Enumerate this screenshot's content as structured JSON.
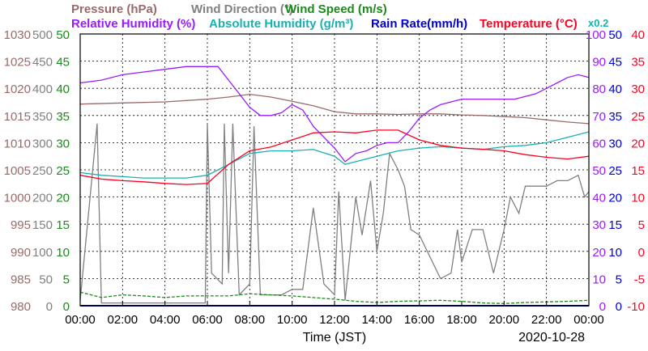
{
  "chart_data": {
    "type": "line",
    "title_parts": [
      {
        "text": "Pressure (hPa)",
        "color": "#9a6a6a"
      },
      {
        "text": "Wind Direction (°)",
        "color": "#808080"
      },
      {
        "text": "Wind Speed (m/s)",
        "color": "#1a8a1a"
      },
      {
        "text": "Relative Humidity (%)",
        "color": "#9a1aff"
      },
      {
        "text": "Absolute Humidity (g/m³)",
        "color": "#1ab0b0"
      },
      {
        "text": "Rain Rate(mm/h)",
        "color": "#0000d0"
      },
      {
        "text": "Temperature (°C)",
        "color": "#ff0020"
      }
    ],
    "scale_note": "x0.2",
    "xlabel": "Time (JST)",
    "date": "2020-10-28",
    "x_ticks": [
      "00:00",
      "02:00",
      "04:00",
      "06:00",
      "08:00",
      "10:00",
      "12:00",
      "14:00",
      "16:00",
      "18:00",
      "20:00",
      "22:00",
      "00:00"
    ],
    "xlim_hours": [
      0,
      24
    ],
    "grid": true,
    "axes": {
      "pressure": {
        "range": [
          980,
          1030
        ],
        "ticks": [
          "1030",
          "1025",
          "1020",
          "1015",
          "1010",
          "1005",
          "1000",
          "995",
          "990",
          "985",
          "980"
        ],
        "color": "#9a6a6a",
        "side": "left"
      },
      "wind_direction": {
        "range": [
          0,
          500
        ],
        "ticks": [
          "500",
          "450",
          "400",
          "350",
          "300",
          "250",
          "200",
          "150",
          "100",
          "50",
          "0"
        ],
        "color": "#808080",
        "side": "left"
      },
      "wind_speed": {
        "range": [
          0,
          50
        ],
        "ticks": [
          "50",
          "45",
          "40",
          "35",
          "30",
          "25",
          "20",
          "15",
          "10",
          "5",
          "0"
        ],
        "color": "#1a8a1a",
        "side": "left"
      },
      "humidity": {
        "range": [
          0,
          100
        ],
        "ticks": [
          "100",
          "90",
          "80",
          "70",
          "60",
          "50",
          "40",
          "30",
          "20",
          "10",
          "0"
        ],
        "color": "#9a1aff",
        "side": "right"
      },
      "rain_rate": {
        "range": [
          0,
          50
        ],
        "ticks": [
          "50",
          "45",
          "40",
          "35",
          "30",
          "25",
          "20",
          "15",
          "10",
          "5",
          "0"
        ],
        "color": "#0000d0",
        "side": "right"
      },
      "temperature": {
        "range": [
          -10,
          40
        ],
        "ticks": [
          "40",
          "35",
          "30",
          "25",
          "20",
          "15",
          "10",
          "5",
          "0",
          "-5",
          "-10"
        ],
        "color": "#ff0020",
        "side": "right"
      }
    },
    "series": [
      {
        "name": "Pressure (hPa)",
        "axis": "pressure",
        "color": "#9a6a6a",
        "x": [
          0,
          2,
          4,
          6,
          7,
          8,
          9,
          10,
          11,
          12,
          13,
          14,
          15,
          16,
          17,
          18,
          19,
          20,
          21,
          22,
          23,
          24
        ],
        "y": [
          1017.1,
          1017.3,
          1017.5,
          1018.0,
          1018.4,
          1018.9,
          1018.4,
          1017.6,
          1016.8,
          1015.7,
          1015.3,
          1015.3,
          1015.2,
          1015.3,
          1015.3,
          1015.1,
          1015.0,
          1014.8,
          1014.6,
          1014.2,
          1013.8,
          1013.5
        ]
      },
      {
        "name": "Wind Direction (°)",
        "axis": "wind_direction",
        "color": "#808080",
        "x": [
          0,
          0.8,
          1,
          2,
          3,
          4,
          5,
          5.9,
          6,
          6.2,
          6.7,
          6.8,
          7,
          7.2,
          7.5,
          8,
          8.2,
          8.5,
          8.8,
          9,
          9.5,
          10,
          10.5,
          11,
          11.5,
          12,
          12.2,
          12.5,
          13,
          13.3,
          13.7,
          14,
          14.3,
          14.6,
          15,
          15.3,
          15.6,
          16,
          16.5,
          17,
          17.5,
          17.8,
          18,
          18.5,
          19,
          19.5,
          20,
          20.3,
          20.7,
          21,
          21.5,
          22,
          22.5,
          23,
          23.5,
          23.8,
          24
        ],
        "y": [
          10,
          335,
          5,
          5,
          5,
          5,
          5,
          5,
          335,
          60,
          40,
          335,
          60,
          335,
          20,
          40,
          330,
          20,
          20,
          20,
          20,
          30,
          30,
          180,
          40,
          20,
          210,
          10,
          200,
          130,
          230,
          100,
          170,
          280,
          250,
          220,
          140,
          130,
          90,
          50,
          60,
          140,
          80,
          140,
          140,
          60,
          140,
          200,
          170,
          220,
          220,
          220,
          230,
          230,
          240,
          200,
          210
        ]
      },
      {
        "name": "Wind Speed (m/s)",
        "axis": "wind_speed",
        "color": "#1a8a1a",
        "x": [
          0,
          1,
          2,
          3,
          4,
          5,
          6,
          7,
          8,
          9,
          10,
          11,
          12,
          13,
          14,
          15,
          16,
          17,
          18,
          19,
          20,
          21,
          22,
          23,
          24
        ],
        "y": [
          2.5,
          1.5,
          2.0,
          1.8,
          1.5,
          1.8,
          1.8,
          1.8,
          2.2,
          2.0,
          1.8,
          1.5,
          1.2,
          0.8,
          0.6,
          0.8,
          0.9,
          1.0,
          0.8,
          0.5,
          0.4,
          0.6,
          0.7,
          0.8,
          1.0
        ]
      },
      {
        "name": "Relative Humidity (%)",
        "axis": "humidity",
        "color": "#9a1aff",
        "x": [
          0,
          1,
          2,
          3,
          4,
          5,
          5.5,
          6,
          6.5,
          7,
          7.5,
          8,
          8.5,
          9,
          9.5,
          10,
          10.5,
          11,
          11.5,
          12,
          12.5,
          13,
          13.5,
          14,
          14.5,
          15,
          15.5,
          16,
          16.5,
          17,
          17.5,
          18,
          18.5,
          19,
          19.5,
          20,
          20.5,
          21,
          21.5,
          22,
          22.5,
          23,
          23.5,
          24
        ],
        "y": [
          82,
          83,
          85,
          86,
          87,
          88,
          88,
          88,
          88,
          83,
          78,
          73,
          70,
          70,
          71,
          74,
          72,
          66,
          62,
          58,
          53,
          56,
          57,
          59,
          60,
          60,
          64,
          69,
          72,
          74,
          75,
          76,
          76,
          76,
          76,
          76,
          76,
          77,
          78,
          80,
          82,
          84,
          85,
          84
        ]
      },
      {
        "name": "Absolute Humidity (g/m³)",
        "axis": "humidity",
        "color": "#1ab0b0",
        "x": [
          0,
          1,
          2,
          3,
          4,
          5,
          6,
          7,
          8,
          9,
          10,
          11,
          12,
          12.5,
          13,
          14,
          15,
          16,
          17,
          18,
          19,
          20,
          21,
          22,
          23,
          24
        ],
        "y": [
          49,
          48,
          47.5,
          47,
          47,
          47,
          48,
          52,
          56,
          57,
          57,
          57.5,
          55,
          52,
          53,
          55,
          57,
          58,
          58.5,
          58,
          57.5,
          58.5,
          59,
          60,
          62,
          64
        ]
      },
      {
        "name": "Rain Rate(mm/h)",
        "axis": "rain_rate",
        "color": "#0000d0",
        "x": [
          0,
          24
        ],
        "y": [
          0,
          0
        ]
      },
      {
        "name": "Temperature (°C)",
        "axis": "temperature",
        "color": "#ff0020",
        "x": [
          0,
          1,
          2,
          3,
          4,
          5,
          6,
          7,
          8,
          9,
          10,
          11,
          12,
          13,
          14,
          15,
          16,
          17,
          18,
          19,
          20,
          21,
          22,
          23,
          24
        ],
        "y": [
          14.0,
          13.3,
          13.0,
          12.8,
          12.5,
          12.3,
          12.5,
          16.0,
          18.5,
          19.2,
          20.5,
          21.8,
          22.0,
          21.8,
          22.3,
          22.3,
          20.5,
          19.5,
          19.0,
          18.8,
          18.5,
          17.8,
          17.3,
          17.0,
          17.5
        ]
      }
    ]
  }
}
